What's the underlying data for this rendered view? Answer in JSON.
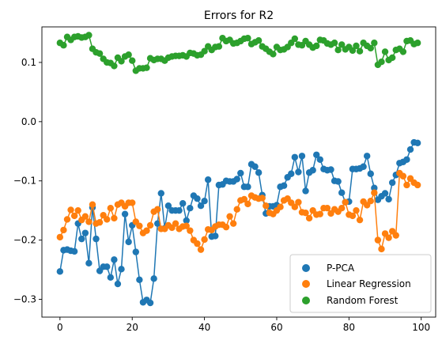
{
  "chart_data": {
    "type": "line",
    "title": "Errors for R2",
    "xlabel": "",
    "ylabel": "",
    "xlim": [
      -5,
      104
    ],
    "ylim": [
      -0.33,
      0.16
    ],
    "xticks": [
      0,
      20,
      40,
      60,
      80,
      100
    ],
    "yticks": [
      0.1,
      0.0,
      -0.1,
      -0.2,
      -0.3
    ],
    "ytick_labels": [
      "0.1",
      "0.0",
      "−0.1",
      "−0.2",
      "−0.3"
    ],
    "grid": false,
    "legend_position": "bottom-right",
    "series": [
      {
        "name": "P-PCA",
        "color": "#1f77b4",
        "x": [
          0,
          1,
          2,
          3,
          4,
          5,
          6,
          7,
          8,
          9,
          10,
          11,
          12,
          13,
          14,
          15,
          16,
          17,
          18,
          19,
          20,
          21,
          22,
          23,
          24,
          25,
          26,
          27,
          28,
          29,
          30,
          31,
          32,
          33,
          34,
          35,
          36,
          37,
          38,
          39,
          40,
          41,
          42,
          43,
          44,
          45,
          46,
          47,
          48,
          49,
          50,
          51,
          52,
          53,
          54,
          55,
          56,
          57,
          58,
          59,
          60,
          61,
          62,
          63,
          64,
          65,
          66,
          67,
          68,
          69,
          70,
          71,
          72,
          73,
          74,
          75,
          76,
          77,
          78,
          79,
          80,
          81,
          82,
          83,
          84,
          85,
          86,
          87,
          88,
          89,
          90,
          91,
          92,
          93,
          94,
          95,
          96,
          97,
          98,
          99
        ],
        "values": [
          -0.253,
          -0.217,
          -0.216,
          -0.218,
          -0.219,
          -0.172,
          -0.198,
          -0.188,
          -0.239,
          -0.145,
          -0.198,
          -0.252,
          -0.245,
          -0.245,
          -0.263,
          -0.233,
          -0.274,
          -0.249,
          -0.156,
          -0.203,
          -0.175,
          -0.22,
          -0.267,
          -0.305,
          -0.301,
          -0.306,
          -0.265,
          -0.172,
          -0.121,
          -0.18,
          -0.142,
          -0.15,
          -0.15,
          -0.15,
          -0.138,
          -0.167,
          -0.146,
          -0.125,
          -0.13,
          -0.142,
          -0.134,
          -0.098,
          -0.194,
          -0.193,
          -0.107,
          -0.106,
          -0.1,
          -0.101,
          -0.101,
          -0.097,
          -0.087,
          -0.11,
          -0.11,
          -0.072,
          -0.076,
          -0.086,
          -0.124,
          -0.155,
          -0.143,
          -0.143,
          -0.141,
          -0.11,
          -0.108,
          -0.094,
          -0.088,
          -0.06,
          -0.085,
          -0.058,
          -0.117,
          -0.086,
          -0.082,
          -0.056,
          -0.064,
          -0.08,
          -0.082,
          -0.081,
          -0.1,
          -0.101,
          -0.12,
          -0.136,
          -0.135,
          -0.08,
          -0.08,
          -0.079,
          -0.076,
          -0.058,
          -0.088,
          -0.112,
          -0.132,
          -0.126,
          -0.121,
          -0.131,
          -0.103,
          -0.09,
          -0.07,
          -0.068,
          -0.064,
          -0.047,
          -0.035,
          -0.036
        ]
      },
      {
        "name": "Linear Regression",
        "color": "#ff7f0e",
        "x": [
          0,
          1,
          2,
          3,
          4,
          5,
          6,
          7,
          8,
          9,
          10,
          11,
          12,
          13,
          14,
          15,
          16,
          17,
          18,
          19,
          20,
          21,
          22,
          23,
          24,
          25,
          26,
          27,
          28,
          29,
          30,
          31,
          32,
          33,
          34,
          35,
          36,
          37,
          38,
          39,
          40,
          41,
          42,
          43,
          44,
          45,
          46,
          47,
          48,
          49,
          50,
          51,
          52,
          53,
          54,
          55,
          56,
          57,
          58,
          59,
          60,
          61,
          62,
          63,
          64,
          65,
          66,
          67,
          68,
          69,
          70,
          71,
          72,
          73,
          74,
          75,
          76,
          77,
          78,
          79,
          80,
          81,
          82,
          83,
          84,
          85,
          86,
          87,
          88,
          89,
          90,
          91,
          92,
          93,
          94,
          95,
          96,
          97,
          98,
          99
        ],
        "values": [
          -0.195,
          -0.183,
          -0.165,
          -0.149,
          -0.159,
          -0.15,
          -0.166,
          -0.16,
          -0.169,
          -0.14,
          -0.172,
          -0.17,
          -0.158,
          -0.165,
          -0.146,
          -0.163,
          -0.14,
          -0.137,
          -0.143,
          -0.137,
          -0.137,
          -0.169,
          -0.176,
          -0.188,
          -0.184,
          -0.175,
          -0.152,
          -0.148,
          -0.181,
          -0.181,
          -0.175,
          -0.179,
          -0.172,
          -0.181,
          -0.177,
          -0.176,
          -0.184,
          -0.2,
          -0.206,
          -0.216,
          -0.199,
          -0.182,
          -0.183,
          -0.177,
          -0.174,
          -0.174,
          -0.178,
          -0.16,
          -0.172,
          -0.148,
          -0.133,
          -0.131,
          -0.139,
          -0.125,
          -0.128,
          -0.13,
          -0.129,
          -0.142,
          -0.154,
          -0.156,
          -0.15,
          -0.144,
          -0.133,
          -0.13,
          -0.137,
          -0.144,
          -0.136,
          -0.153,
          -0.154,
          -0.163,
          -0.15,
          -0.157,
          -0.156,
          -0.146,
          -0.146,
          -0.155,
          -0.148,
          -0.152,
          -0.146,
          -0.136,
          -0.157,
          -0.159,
          -0.15,
          -0.166,
          -0.135,
          -0.141,
          -0.134,
          -0.12,
          -0.2,
          -0.215,
          -0.189,
          -0.196,
          -0.185,
          -0.192,
          -0.087,
          -0.092,
          -0.107,
          -0.096,
          -0.103,
          -0.107
        ]
      },
      {
        "name": "Random Forest",
        "color": "#2ca02c",
        "x": [
          0,
          1,
          2,
          3,
          4,
          5,
          6,
          7,
          8,
          9,
          10,
          11,
          12,
          13,
          14,
          15,
          16,
          17,
          18,
          19,
          20,
          21,
          22,
          23,
          24,
          25,
          26,
          27,
          28,
          29,
          30,
          31,
          32,
          33,
          34,
          35,
          36,
          37,
          38,
          39,
          40,
          41,
          42,
          43,
          44,
          45,
          46,
          47,
          48,
          49,
          50,
          51,
          52,
          53,
          54,
          55,
          56,
          57,
          58,
          59,
          60,
          61,
          62,
          63,
          64,
          65,
          66,
          67,
          68,
          69,
          70,
          71,
          72,
          73,
          74,
          75,
          76,
          77,
          78,
          79,
          80,
          81,
          82,
          83,
          84,
          85,
          86,
          87,
          88,
          89,
          90,
          91,
          92,
          93,
          94,
          95,
          96,
          97,
          98,
          99
        ],
        "values": [
          0.133,
          0.129,
          0.143,
          0.138,
          0.143,
          0.144,
          0.142,
          0.143,
          0.146,
          0.123,
          0.117,
          0.115,
          0.106,
          0.1,
          0.099,
          0.094,
          0.108,
          0.102,
          0.11,
          0.113,
          0.103,
          0.086,
          0.09,
          0.09,
          0.091,
          0.107,
          0.104,
          0.106,
          0.106,
          0.103,
          0.108,
          0.11,
          0.111,
          0.111,
          0.112,
          0.11,
          0.116,
          0.115,
          0.112,
          0.113,
          0.119,
          0.127,
          0.121,
          0.126,
          0.127,
          0.141,
          0.136,
          0.138,
          0.132,
          0.133,
          0.136,
          0.14,
          0.141,
          0.131,
          0.134,
          0.137,
          0.127,
          0.123,
          0.118,
          0.114,
          0.126,
          0.121,
          0.122,
          0.126,
          0.133,
          0.14,
          0.13,
          0.129,
          0.136,
          0.13,
          0.125,
          0.128,
          0.138,
          0.137,
          0.132,
          0.13,
          0.133,
          0.121,
          0.13,
          0.122,
          0.126,
          0.12,
          0.128,
          0.119,
          0.133,
          0.128,
          0.124,
          0.133,
          0.096,
          0.101,
          0.118,
          0.104,
          0.108,
          0.121,
          0.123,
          0.118,
          0.136,
          0.137,
          0.131,
          0.133
        ]
      }
    ]
  }
}
